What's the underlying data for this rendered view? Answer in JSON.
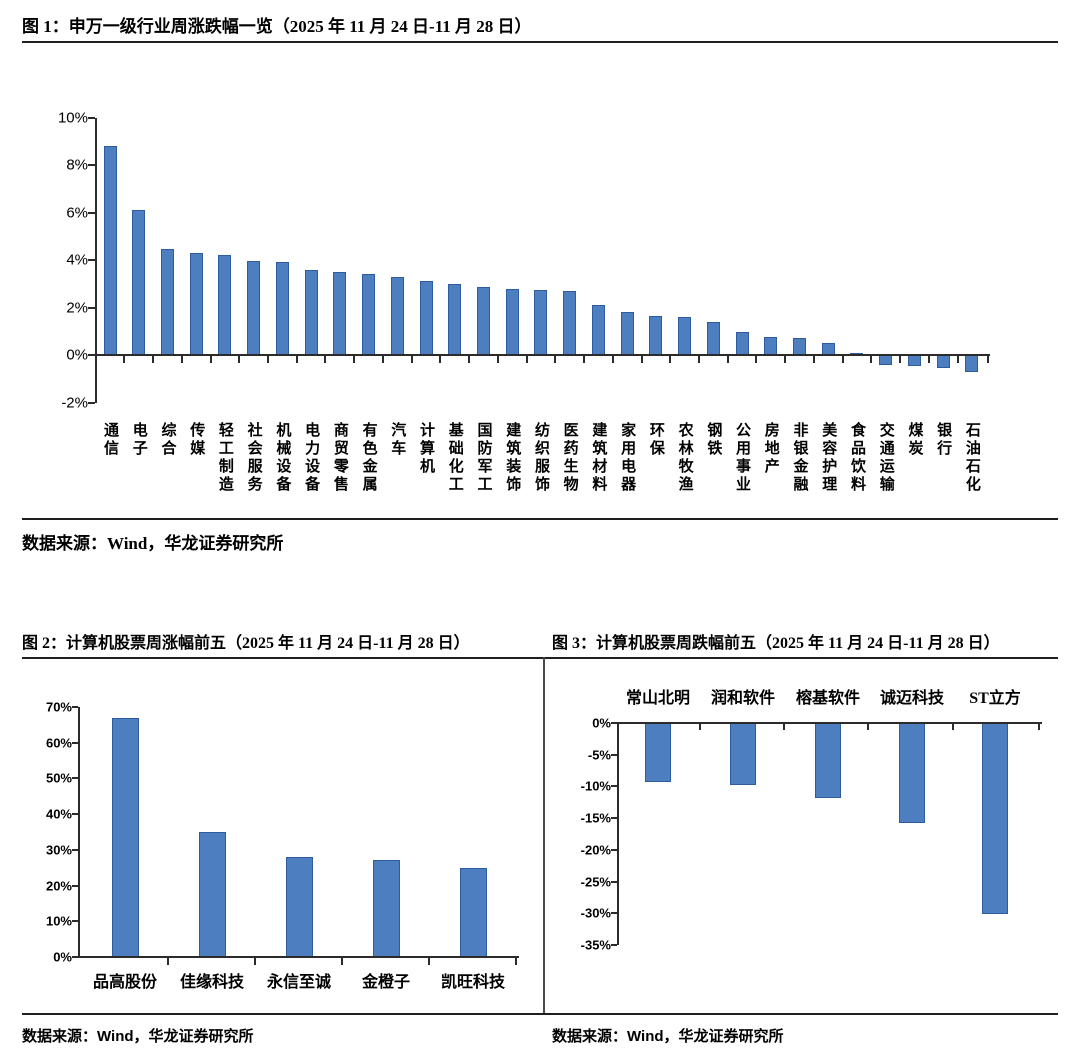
{
  "figures": {
    "fig1": {
      "title": "图 1：申万一级行业周涨跌幅一览（2025 年 11 月 24 日-11 月 28 日）",
      "source": "数据来源：Wind，华龙证券研究所"
    },
    "fig2": {
      "title": "图 2：计算机股票周涨幅前五（2025 年 11 月 24 日-11 月 28 日）",
      "source": "数据来源：Wind，华龙证券研究所"
    },
    "fig3": {
      "title": "图 3：计算机股票周跌幅前五（2025 年 11 月 24 日-11 月 28 日）",
      "source": "数据来源：Wind，华龙证券研究所"
    }
  },
  "colors": {
    "bar_fill": "#4d7ebf",
    "bar_border": "#2d5d9f",
    "axis": "#2b2b2b",
    "rule": "#1f1f1f",
    "text": "#000000"
  },
  "chart_data": [
    {
      "type": "bar",
      "title": "申万一级行业周涨跌幅一览（2025 年 11 月 24 日-11 月 28 日）",
      "unit": "%",
      "categories": [
        "通信",
        "电子",
        "综合",
        "传媒",
        "轻工制造",
        "社会服务",
        "机械设备",
        "电力设备",
        "商贸零售",
        "有色金属",
        "汽车",
        "计算机",
        "基础化工",
        "国防军工",
        "建筑装饰",
        "纺织服饰",
        "医药生物",
        "建筑材料",
        "家用电器",
        "环保",
        "农林牧渔",
        "钢铁",
        "公用事业",
        "房地产",
        "非银金融",
        "美容护理",
        "食品饮料",
        "交通运输",
        "煤炭",
        "银行",
        "石油石化"
      ],
      "values": [
        8.8,
        6.1,
        4.45,
        4.3,
        4.2,
        3.95,
        3.9,
        3.6,
        3.5,
        3.4,
        3.3,
        3.1,
        3.0,
        2.85,
        2.8,
        2.75,
        2.7,
        2.1,
        1.8,
        1.65,
        1.6,
        1.4,
        0.95,
        0.75,
        0.7,
        0.5,
        0.1,
        -0.4,
        -0.45,
        -0.55,
        -0.7
      ],
      "xlabel": "",
      "ylabel": "",
      "ylim": [
        -2,
        10
      ],
      "ytick_step": 2,
      "grid": false,
      "legend": "none",
      "bar_color": "#4d7ebf"
    },
    {
      "type": "bar",
      "title": "计算机股票周涨幅前五（2025 年 11 月 24 日-11 月 28 日）",
      "unit": "%",
      "categories": [
        "品高股份",
        "佳缘科技",
        "永信至诚",
        "金橙子",
        "凯旺科技"
      ],
      "values": [
        67,
        35,
        28,
        27.3,
        25
      ],
      "xlabel": "",
      "ylabel": "",
      "ylim": [
        0,
        70
      ],
      "ytick_step": 10,
      "grid": false,
      "legend": "none",
      "bar_color": "#4d7ebf"
    },
    {
      "type": "bar",
      "title": "计算机股票周跌幅前五（2025 年 11 月 24 日-11 月 28 日）",
      "unit": "%",
      "categories": [
        "常山北明",
        "润和软件",
        "榕基软件",
        "诚迈科技",
        "ST立方"
      ],
      "values": [
        -9.3,
        -9.8,
        -11.8,
        -15.8,
        -30.2
      ],
      "xlabel": "",
      "ylabel": "",
      "ylim": [
        -35,
        0
      ],
      "ytick_step": 5,
      "grid": false,
      "legend": "none",
      "bar_color": "#4d7ebf"
    }
  ]
}
